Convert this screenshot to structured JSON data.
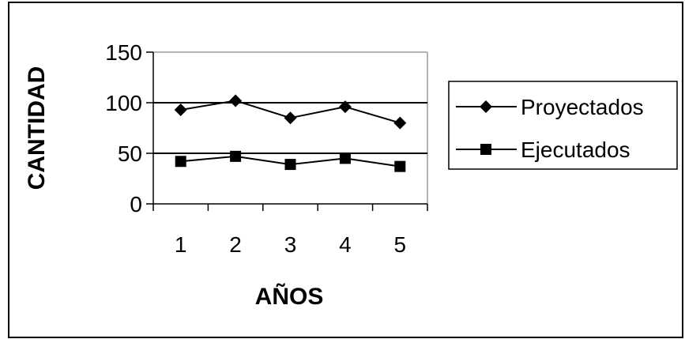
{
  "chart_data": {
    "type": "line",
    "title": "",
    "xlabel": "AÑOS",
    "ylabel": "CANTIDAD",
    "categories": [
      "1",
      "2",
      "3",
      "4",
      "5"
    ],
    "series": [
      {
        "name": "Proyectados",
        "marker": "diamond",
        "color": "#000000",
        "values": [
          93,
          102,
          85,
          96,
          80
        ]
      },
      {
        "name": "Ejecutados",
        "marker": "square",
        "color": "#000000",
        "values": [
          42,
          47,
          39,
          45,
          37
        ]
      }
    ],
    "ylim": [
      0,
      150
    ],
    "yticks": [
      "0",
      "50",
      "100",
      "150"
    ],
    "grid": {
      "horizontal": true,
      "vertical": false
    },
    "legend_position": "right"
  }
}
